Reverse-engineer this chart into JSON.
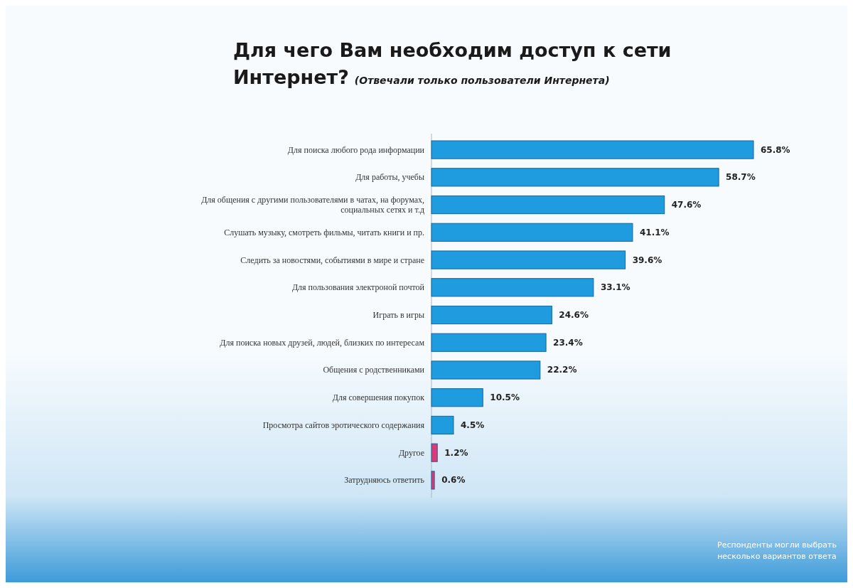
{
  "chart_data": {
    "type": "bar",
    "orientation": "horizontal",
    "title": "Для чего Вам необходим доступ к сети Интернет?",
    "subtitle": "(Отвечали только пользователи Интернета)",
    "categories": [
      "Для поиска любого рода информации",
      "Для работы, учебы",
      "Для общения с другими пользователями в чатах, на форумах, социальных сетях и т.д",
      "Слушать музыку, смотреть фильмы, читать книги и пр.",
      "Следить за новостями, событиями в мире и стране",
      "Для пользования электроной почтой",
      "Играть в игры",
      "Для поиска новых друзей, людей, близких по интересам",
      "Общения с родственниками",
      "Для совершения покупок",
      "Просмотра сайтов эротического содержания",
      "Другое",
      "Затрудняюсь ответить"
    ],
    "values": [
      65.8,
      58.7,
      47.6,
      41.1,
      39.6,
      33.1,
      24.6,
      23.4,
      22.2,
      10.5,
      4.5,
      1.2,
      0.6
    ],
    "value_labels": [
      "65.8%",
      "58.7%",
      "47.6%",
      "41.1%",
      "39.6%",
      "33.1%",
      "24.6%",
      "23.4%",
      "22.2%",
      "10.5%",
      "4.5%",
      "1.2%",
      "0.6%"
    ],
    "colors": [
      "#1f9be0",
      "#1f9be0",
      "#1f9be0",
      "#1f9be0",
      "#1f9be0",
      "#1f9be0",
      "#1f9be0",
      "#1f9be0",
      "#1f9be0",
      "#1f9be0",
      "#1f9be0",
      "#d83a78",
      "#d83a78"
    ],
    "annotations": [
      "Респонденты могли выбрать несколько вариантов ответа"
    ]
  }
}
